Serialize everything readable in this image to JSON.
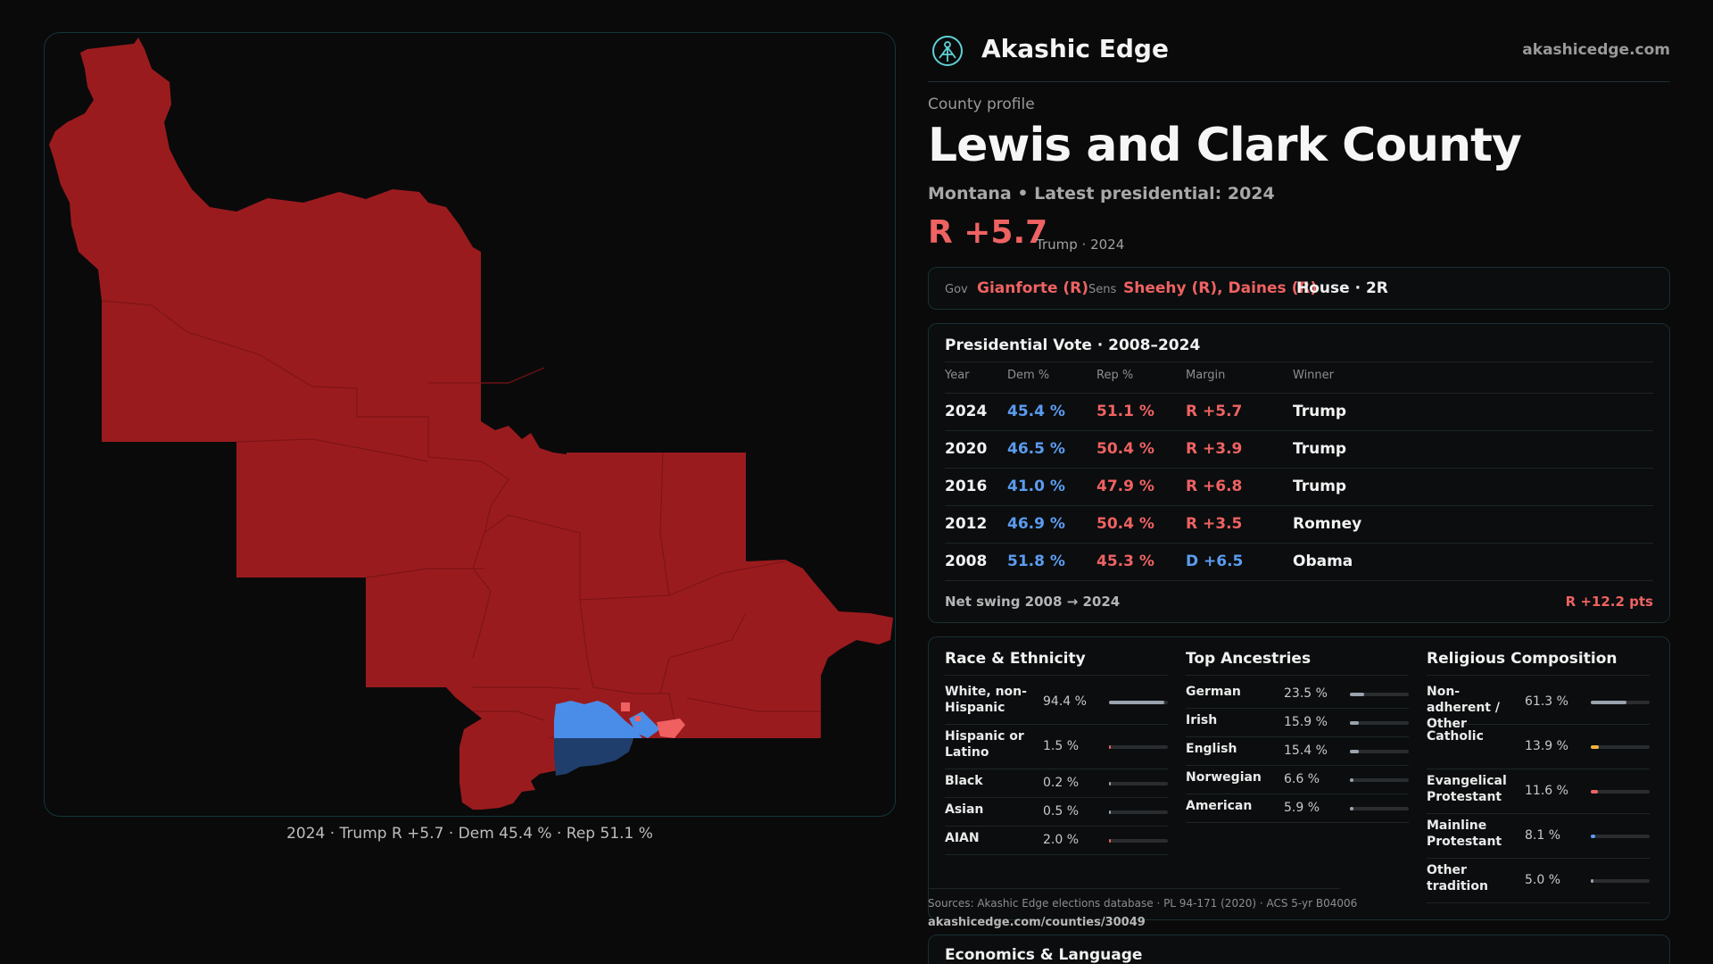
{
  "brand": {
    "name": "Akashic Edge",
    "url": "akashicedge.com"
  },
  "header": {
    "eyebrow": "County profile",
    "title": "Lewis and Clark County",
    "subtitle": "Montana • Latest presidential: 2024",
    "margin": "R +5.7",
    "margin_note": "Trump · 2024"
  },
  "officials": {
    "gov_label": "Gov",
    "gov": "Gianforte (R)",
    "sens_label": "Sens",
    "sens": "Sheehy (R), Daines (R)",
    "house": "House · 2R"
  },
  "presidential": {
    "title": "Presidential Vote · 2008–2024",
    "columns": [
      "Year",
      "Dem %",
      "Rep %",
      "Margin",
      "Winner"
    ],
    "rows": [
      {
        "year": "2024",
        "dem": "45.4 %",
        "rep": "51.1 %",
        "margin": "R +5.7",
        "party": "R",
        "winner": "Trump"
      },
      {
        "year": "2020",
        "dem": "46.5 %",
        "rep": "50.4 %",
        "margin": "R +3.9",
        "party": "R",
        "winner": "Trump"
      },
      {
        "year": "2016",
        "dem": "41.0 %",
        "rep": "47.9 %",
        "margin": "R +6.8",
        "party": "R",
        "winner": "Trump"
      },
      {
        "year": "2012",
        "dem": "46.9 %",
        "rep": "50.4 %",
        "margin": "R +3.5",
        "party": "R",
        "winner": "Romney"
      },
      {
        "year": "2008",
        "dem": "51.8 %",
        "rep": "45.3 %",
        "margin": "D +6.5",
        "party": "D",
        "winner": "Obama"
      }
    ],
    "swing_label": "Net swing 2008 → 2024",
    "swing_value": "R +12.2 pts"
  },
  "race": {
    "title": "Race & Ethnicity",
    "items": [
      {
        "label": "White, non-Hispanic",
        "value": "94.4 %",
        "pct": 94.4,
        "color": "#9aa3ad"
      },
      {
        "label": "Hispanic or Latino",
        "value": "1.5 %",
        "pct": 1.5,
        "color": "#ef6262"
      },
      {
        "label": "Black",
        "value": "0.2 %",
        "pct": 0.2,
        "color": "#9aa3ad"
      },
      {
        "label": "Asian",
        "value": "0.5 %",
        "pct": 0.5,
        "color": "#9aa3ad"
      },
      {
        "label": "AIAN",
        "value": "2.0 %",
        "pct": 2.0,
        "color": "#ef6262"
      }
    ]
  },
  "ancestry": {
    "title": "Top Ancestries",
    "items": [
      {
        "label": "German",
        "value": "23.5 %",
        "pct": 23.5,
        "color": "#9aa3ad"
      },
      {
        "label": "Irish",
        "value": "15.9 %",
        "pct": 15.9,
        "color": "#9aa3ad"
      },
      {
        "label": "English",
        "value": "15.4 %",
        "pct": 15.4,
        "color": "#9aa3ad"
      },
      {
        "label": "Norwegian",
        "value": "6.6 %",
        "pct": 6.6,
        "color": "#9aa3ad"
      },
      {
        "label": "American",
        "value": "5.9 %",
        "pct": 5.9,
        "color": "#9aa3ad"
      }
    ]
  },
  "religion": {
    "title": "Religious Composition",
    "items": [
      {
        "label": "Non-adherent / Other",
        "value": "61.3 %",
        "pct": 61.3,
        "color": "#9aa3ad"
      },
      {
        "label": "Catholic",
        "value": "13.9 %",
        "pct": 13.9,
        "color": "#f0b440"
      },
      {
        "label": "Evangelical Protestant",
        "value": "11.6 %",
        "pct": 11.6,
        "color": "#ef6262"
      },
      {
        "label": "Mainline Protestant",
        "value": "8.1 %",
        "pct": 8.1,
        "color": "#5b9cf0"
      },
      {
        "label": "Other tradition",
        "value": "5.0 %",
        "pct": 5.0,
        "color": "#9aa3ad"
      }
    ]
  },
  "sources": {
    "text": "Sources: Akashic Edge elections database · PL 94-171 (2020) · ACS 5-yr B04006",
    "url": "akashicedge.com/counties/30049"
  },
  "econ": {
    "title": "Economics & Language"
  },
  "map": {
    "caption": "2024 · Trump R +5.7 · Dem 45.4 % · Rep 51.1 %",
    "colors": {
      "rep": "#9a1b1e",
      "dem": "#4a8de8",
      "dem_dark": "#1f3e6b",
      "rep_light": "#f06060"
    }
  }
}
